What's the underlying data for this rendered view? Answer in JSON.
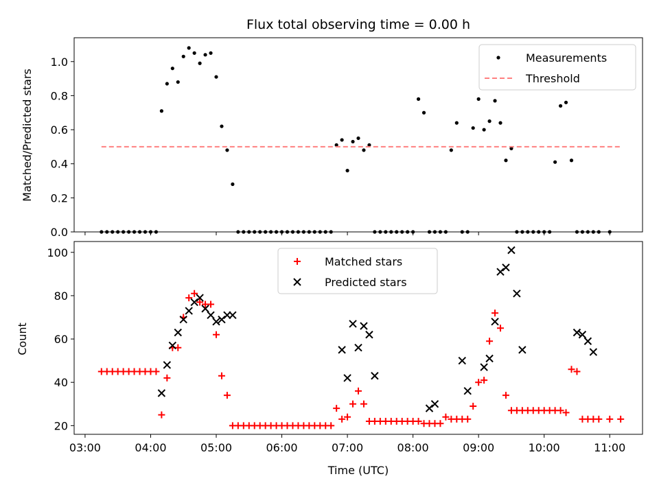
{
  "chart_data": [
    {
      "type": "scatter",
      "title": "Flux total observing time = 0.00 h",
      "xlabel": "",
      "ylabel": "Matched/Predicted stars",
      "xlim": [
        "02:50",
        "11:30"
      ],
      "ylim": [
        0,
        1.14
      ],
      "yticks": [
        "0.0",
        "0.2",
        "0.4",
        "0.6",
        "0.8",
        "1.0"
      ],
      "legend_position": "top-right",
      "series": [
        {
          "name": "Measurements",
          "marker": "dot",
          "color": "#000000",
          "x": [
            "03:15",
            "03:20",
            "03:25",
            "03:30",
            "03:35",
            "03:40",
            "03:45",
            "03:50",
            "03:55",
            "04:00",
            "04:05",
            "04:10",
            "04:15",
            "04:20",
            "04:25",
            "04:30",
            "04:35",
            "04:40",
            "04:45",
            "04:50",
            "04:55",
            "05:00",
            "05:05",
            "05:10",
            "05:15",
            "05:20",
            "05:25",
            "05:30",
            "05:35",
            "05:40",
            "05:45",
            "05:50",
            "05:55",
            "06:00",
            "06:05",
            "06:10",
            "06:15",
            "06:20",
            "06:25",
            "06:30",
            "06:35",
            "06:40",
            "06:45",
            "06:50",
            "06:55",
            "07:00",
            "07:05",
            "07:10",
            "07:15",
            "07:20",
            "07:25",
            "07:30",
            "07:35",
            "07:40",
            "07:45",
            "07:50",
            "07:55",
            "08:00",
            "08:05",
            "08:10",
            "08:15",
            "08:20",
            "08:25",
            "08:30",
            "08:35",
            "08:40",
            "08:45",
            "08:50",
            "08:55",
            "09:00",
            "09:05",
            "09:10",
            "09:15",
            "09:20",
            "09:25",
            "09:30",
            "09:35",
            "09:40",
            "09:45",
            "09:50",
            "09:55",
            "10:00",
            "10:05",
            "10:10",
            "10:15",
            "10:20",
            "10:25",
            "10:30",
            "10:35",
            "10:40",
            "10:45",
            "10:50",
            "11:00"
          ],
          "y": [
            0,
            0,
            0,
            0,
            0,
            0,
            0,
            0,
            0,
            0,
            0,
            0.71,
            0.87,
            0.96,
            0.88,
            1.03,
            1.08,
            1.05,
            0.99,
            1.04,
            1.05,
            0.91,
            0.62,
            0.48,
            0.28,
            0,
            0,
            0,
            0,
            0,
            0,
            0,
            0,
            0,
            0,
            0,
            0,
            0,
            0,
            0,
            0,
            0,
            0,
            0.51,
            0.54,
            0.36,
            0.53,
            0.55,
            0.48,
            0.51,
            0,
            0,
            0,
            0,
            0,
            0,
            0,
            0,
            0.78,
            0.7,
            0,
            0,
            0,
            0,
            0.48,
            0.64,
            0,
            0,
            0.61,
            0.78,
            0.6,
            0.65,
            0.77,
            0.64,
            0.42,
            0.49,
            0,
            0,
            0,
            0,
            0,
            0,
            0,
            0.41,
            0.74,
            0.76,
            0.42,
            0,
            0,
            0,
            0,
            0,
            0
          ]
        },
        {
          "name": "Threshold",
          "marker": "dashed-line",
          "color": "#ff7f7f",
          "x": [
            "03:15",
            "11:10"
          ],
          "y": [
            0.5,
            0.5
          ]
        }
      ]
    },
    {
      "type": "scatter",
      "title": "",
      "xlabel": "Time (UTC)",
      "ylabel": "Count",
      "xlim": [
        "02:50",
        "11:30"
      ],
      "ylim": [
        16,
        105
      ],
      "yticks": [
        "20",
        "40",
        "60",
        "80",
        "100"
      ],
      "xticks": [
        "03:00",
        "04:00",
        "05:00",
        "06:00",
        "07:00",
        "08:00",
        "09:00",
        "10:00",
        "11:00"
      ],
      "legend_position": "top-center",
      "series": [
        {
          "name": "Matched stars",
          "marker": "plus",
          "color": "#ff0000",
          "x": [
            "03:15",
            "03:20",
            "03:25",
            "03:30",
            "03:35",
            "03:40",
            "03:45",
            "03:50",
            "03:55",
            "04:00",
            "04:05",
            "04:10",
            "04:15",
            "04:20",
            "04:25",
            "04:30",
            "04:35",
            "04:40",
            "04:45",
            "04:50",
            "04:55",
            "05:00",
            "05:05",
            "05:10",
            "05:15",
            "05:20",
            "05:25",
            "05:30",
            "05:35",
            "05:40",
            "05:45",
            "05:50",
            "05:55",
            "06:00",
            "06:05",
            "06:10",
            "06:15",
            "06:20",
            "06:25",
            "06:30",
            "06:35",
            "06:40",
            "06:45",
            "06:50",
            "06:55",
            "07:00",
            "07:05",
            "07:10",
            "07:15",
            "07:20",
            "07:25",
            "07:30",
            "07:35",
            "07:40",
            "07:45",
            "07:50",
            "07:55",
            "08:00",
            "08:05",
            "08:10",
            "08:15",
            "08:20",
            "08:25",
            "08:30",
            "08:35",
            "08:40",
            "08:45",
            "08:50",
            "08:55",
            "09:00",
            "09:05",
            "09:10",
            "09:15",
            "09:20",
            "09:25",
            "09:30",
            "09:35",
            "09:40",
            "09:45",
            "09:50",
            "09:55",
            "10:00",
            "10:05",
            "10:10",
            "10:15",
            "10:20",
            "10:25",
            "10:30",
            "10:35",
            "10:40",
            "10:45",
            "10:50",
            "11:00",
            "11:10"
          ],
          "y": [
            45,
            45,
            45,
            45,
            45,
            45,
            45,
            45,
            45,
            45,
            45,
            25,
            42,
            56,
            56,
            70,
            79,
            81,
            77,
            76,
            76,
            62,
            43,
            34,
            20,
            20,
            20,
            20,
            20,
            20,
            20,
            20,
            20,
            20,
            20,
            20,
            20,
            20,
            20,
            20,
            20,
            20,
            20,
            28,
            23,
            24,
            30,
            36,
            30,
            22,
            22,
            22,
            22,
            22,
            22,
            22,
            22,
            22,
            22,
            21,
            21,
            21,
            21,
            24,
            23,
            23,
            23,
            23,
            29,
            40,
            41,
            59,
            72,
            65,
            34,
            27,
            27,
            27,
            27,
            27,
            27,
            27,
            27,
            27,
            27,
            26,
            46,
            45,
            23,
            23,
            23,
            23,
            23,
            23
          ]
        },
        {
          "name": "Predicted stars",
          "marker": "x",
          "color": "#000000",
          "x": [
            "04:10",
            "04:15",
            "04:20",
            "04:25",
            "04:30",
            "04:35",
            "04:40",
            "04:45",
            "04:50",
            "04:55",
            "05:00",
            "05:05",
            "05:10",
            "05:15",
            "06:55",
            "07:00",
            "07:05",
            "07:10",
            "07:15",
            "07:20",
            "07:25",
            "08:15",
            "08:20",
            "08:45",
            "08:50",
            "09:05",
            "09:10",
            "09:15",
            "09:20",
            "09:25",
            "09:30",
            "09:35",
            "09:40",
            "10:30",
            "10:35",
            "10:40",
            "10:45"
          ],
          "y": [
            35,
            48,
            57,
            63,
            69,
            73,
            77,
            79,
            74,
            71,
            68,
            69,
            71,
            71,
            55,
            42,
            67,
            56,
            66,
            62,
            43,
            28,
            30,
            50,
            36,
            47,
            51,
            68,
            91,
            93,
            101,
            81,
            55,
            63,
            62,
            59,
            54
          ]
        }
      ]
    }
  ]
}
